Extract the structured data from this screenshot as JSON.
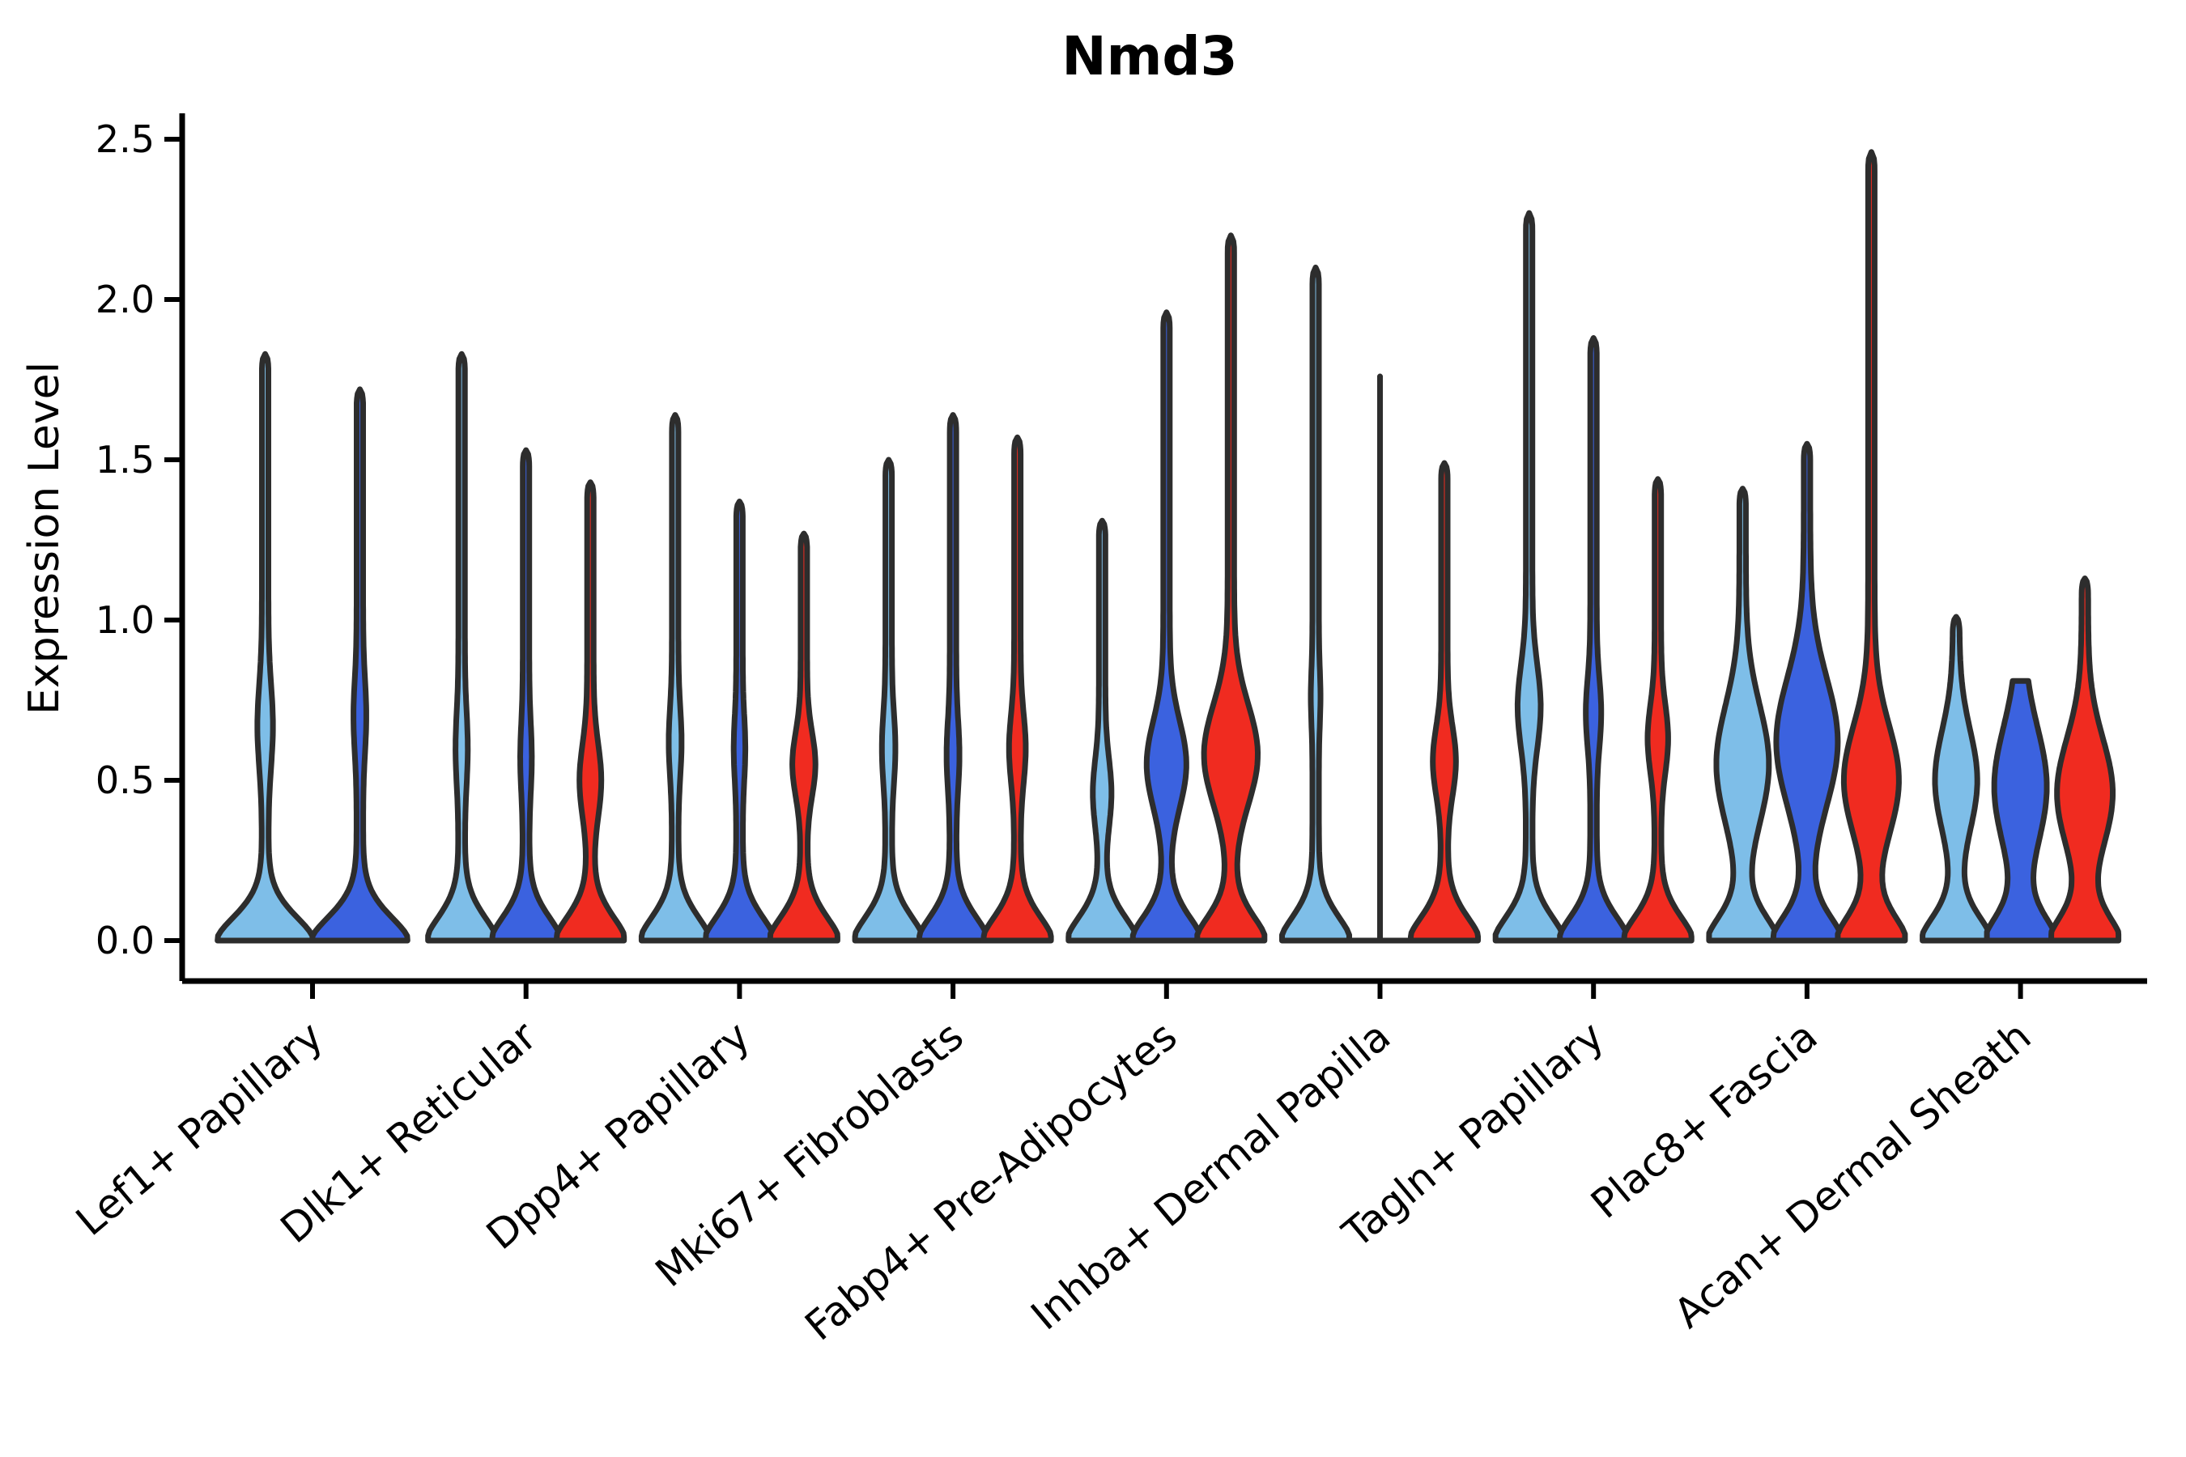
{
  "chart_data": {
    "type": "violin",
    "title": "Nmd3",
    "xlabel": "",
    "ylabel": "Expression Level",
    "yticks": [
      0.0,
      0.5,
      1.0,
      1.5,
      2.0,
      2.5
    ],
    "ylim": [
      -0.13,
      2.6
    ],
    "grid": false,
    "legend": "none",
    "outline_color": "#2d2d2d",
    "axis_color": "#000000",
    "split_colors": [
      {
        "name": "light-blue",
        "hex": "#7EBEE8"
      },
      {
        "name": "royal-blue",
        "hex": "#3B62DF"
      },
      {
        "name": "red",
        "hex": "#F02B20"
      }
    ],
    "categories": [
      "Lef1+ Papillary",
      "Dlk1+ Reticular",
      "Dpp4+ Papillary",
      "Mki67+ Fibroblasts",
      "Fabp4+ Pre-Adipocytes",
      "Inhba+ Dermal Papilla",
      "Tagln+ Papillary",
      "Plac8+ Fascia",
      "Acan+ Dermal Sheath"
    ],
    "groups": [
      {
        "category": "Lef1+ Papillary",
        "violins": [
          {
            "split": 0,
            "shape": "kde",
            "max": 1.83,
            "bulge": {
              "center": 0.67,
              "sigma": 0.18,
              "width": 0.1
            }
          },
          {
            "split": 1,
            "shape": "kde",
            "max": 1.72,
            "bulge": {
              "center": 0.7,
              "sigma": 0.16,
              "width": 0.07
            }
          }
        ]
      },
      {
        "category": "Dlk1+ Reticular",
        "violins": [
          {
            "split": 0,
            "shape": "kde",
            "max": 1.83,
            "bulge": {
              "center": 0.6,
              "sigma": 0.16,
              "width": 0.09
            }
          },
          {
            "split": 1,
            "shape": "kde",
            "max": 1.53,
            "bulge": {
              "center": 0.57,
              "sigma": 0.15,
              "width": 0.08
            }
          },
          {
            "split": 2,
            "shape": "kde",
            "max": 1.43,
            "bulge": {
              "center": 0.5,
              "sigma": 0.16,
              "width": 0.24
            }
          }
        ]
      },
      {
        "category": "Dpp4+ Papillary",
        "violins": [
          {
            "split": 0,
            "shape": "kde",
            "max": 1.64,
            "bulge": {
              "center": 0.62,
              "sigma": 0.15,
              "width": 0.1
            }
          },
          {
            "split": 1,
            "shape": "kde",
            "max": 1.37,
            "bulge": {
              "center": 0.6,
              "sigma": 0.14,
              "width": 0.08
            }
          },
          {
            "split": 2,
            "shape": "kde",
            "max": 1.27,
            "bulge": {
              "center": 0.55,
              "sigma": 0.14,
              "width": 0.26
            }
          }
        ]
      },
      {
        "category": "Mki67+ Fibroblasts",
        "violins": [
          {
            "split": 0,
            "shape": "kde",
            "max": 1.5,
            "bulge": {
              "center": 0.6,
              "sigma": 0.15,
              "width": 0.11
            }
          },
          {
            "split": 1,
            "shape": "kde",
            "max": 1.64,
            "bulge": {
              "center": 0.58,
              "sigma": 0.15,
              "width": 0.1
            }
          },
          {
            "split": 2,
            "shape": "kde",
            "max": 1.57,
            "bulge": {
              "center": 0.6,
              "sigma": 0.15,
              "width": 0.16
            }
          }
        ]
      },
      {
        "category": "Fabp4+ Pre-Adipocytes",
        "violins": [
          {
            "split": 0,
            "shape": "kde",
            "max": 1.31,
            "bulge": {
              "center": 0.46,
              "sigma": 0.15,
              "width": 0.19
            }
          },
          {
            "split": 1,
            "shape": "kde",
            "max": 1.96,
            "bulge": {
              "center": 0.55,
              "sigma": 0.19,
              "width": 0.52
            }
          },
          {
            "split": 2,
            "shape": "kde",
            "max": 2.2,
            "bulge": {
              "center": 0.58,
              "sigma": 0.22,
              "width": 0.74
            }
          }
        ]
      },
      {
        "category": "Inhba+ Dermal Papilla",
        "violins": [
          {
            "split": 0,
            "shape": "kde",
            "max": 2.1,
            "bulge": {
              "center": 0.76,
              "sigma": 0.12,
              "width": 0.05
            }
          },
          {
            "split": 1,
            "shape": "line",
            "max": 1.76,
            "bulge": {
              "center": 0.0,
              "sigma": 0.1,
              "width": 0.0
            }
          },
          {
            "split": 2,
            "shape": "kde",
            "max": 1.49,
            "bulge": {
              "center": 0.56,
              "sigma": 0.15,
              "width": 0.26
            }
          }
        ]
      },
      {
        "category": "Tagln+ Papillary",
        "violins": [
          {
            "split": 0,
            "shape": "kde",
            "max": 2.27,
            "bulge": {
              "center": 0.73,
              "sigma": 0.18,
              "width": 0.26
            }
          },
          {
            "split": 1,
            "shape": "kde",
            "max": 1.88,
            "bulge": {
              "center": 0.71,
              "sigma": 0.15,
              "width": 0.14
            }
          },
          {
            "split": 2,
            "shape": "kde",
            "max": 1.44,
            "bulge": {
              "center": 0.63,
              "sigma": 0.15,
              "width": 0.22
            }
          }
        ]
      },
      {
        "category": "Plac8+ Fascia",
        "violins": [
          {
            "split": 0,
            "shape": "kde",
            "max": 1.41,
            "bulge": {
              "center": 0.55,
              "sigma": 0.26,
              "width": 0.72
            }
          },
          {
            "split": 1,
            "shape": "kde",
            "max": 1.55,
            "bulge": {
              "center": 0.62,
              "sigma": 0.28,
              "width": 0.86
            }
          },
          {
            "split": 2,
            "shape": "kde",
            "max": 2.46,
            "bulge": {
              "center": 0.5,
              "sigma": 0.24,
              "width": 0.76
            }
          }
        ]
      },
      {
        "category": "Acan+ Dermal Sheath",
        "violins": [
          {
            "split": 0,
            "shape": "kde",
            "max": 1.01,
            "bulge": {
              "center": 0.5,
              "sigma": 0.22,
              "width": 0.56
            }
          },
          {
            "split": 1,
            "shape": "flat-top",
            "max": 0.81,
            "bulge": {
              "center": 0.48,
              "sigma": 0.26,
              "width": 0.72
            }
          },
          {
            "split": 2,
            "shape": "kde",
            "max": 1.13,
            "bulge": {
              "center": 0.46,
              "sigma": 0.24,
              "width": 0.77
            }
          }
        ]
      }
    ]
  }
}
